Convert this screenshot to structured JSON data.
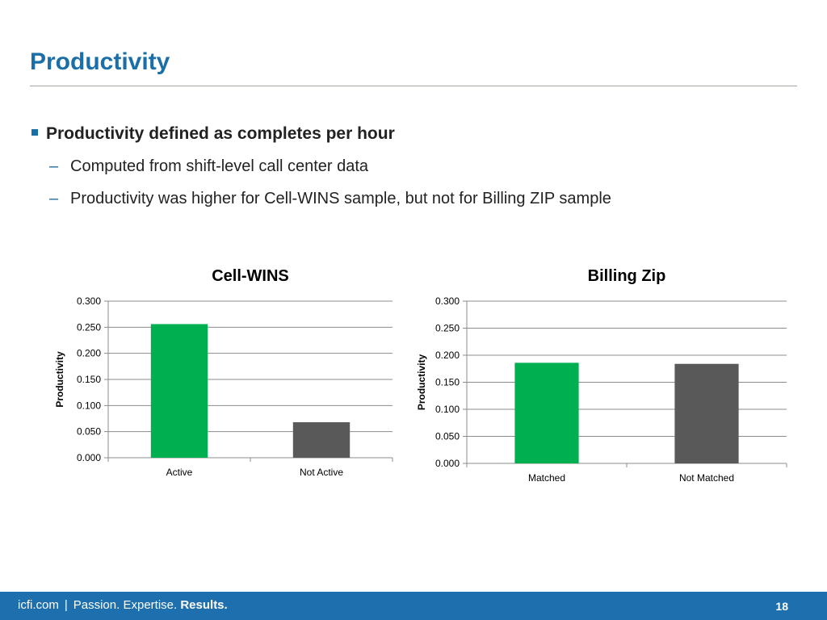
{
  "slide": {
    "title": "Productivity",
    "bullet_main": "Productivity defined as completes per hour",
    "sub_bullets": [
      "Computed from shift-level call center data",
      "Productivity was higher for Cell-WINS sample, but not for Billing ZIP sample"
    ],
    "dash_glyph": "–"
  },
  "footer": {
    "site": "icfi.com",
    "separator": "|",
    "tag1": "Passion.",
    "tag2": "Expertise.",
    "tag3": "Results.",
    "page_number": "18"
  },
  "colors": {
    "title": "#1a6fa8",
    "footer_bg": "#1d6fae",
    "bar_green": "#00b050",
    "bar_gray": "#595959",
    "grid": "#8c8c8c"
  },
  "chart_data": [
    {
      "type": "bar",
      "title": "Cell-WINS",
      "ylabel": "Productivity",
      "xlabel": "",
      "categories": [
        "Active",
        "Not Active"
      ],
      "values": [
        0.256,
        0.068
      ],
      "bar_colors": [
        "#00b050",
        "#595959"
      ],
      "ylim": [
        0,
        0.3
      ],
      "yticks": [
        "0.000",
        "0.050",
        "0.100",
        "0.150",
        "0.200",
        "0.250",
        "0.300"
      ],
      "grid": true,
      "legend": "none"
    },
    {
      "type": "bar",
      "title": "Billing Zip",
      "ylabel": "Productivity",
      "xlabel": "",
      "categories": [
        "Matched",
        "Not Matched"
      ],
      "values": [
        0.186,
        0.184
      ],
      "bar_colors": [
        "#00b050",
        "#595959"
      ],
      "ylim": [
        0,
        0.3
      ],
      "yticks": [
        "0.000",
        "0.050",
        "0.100",
        "0.150",
        "0.200",
        "0.250",
        "0.300"
      ],
      "grid": true,
      "legend": "none"
    }
  ]
}
